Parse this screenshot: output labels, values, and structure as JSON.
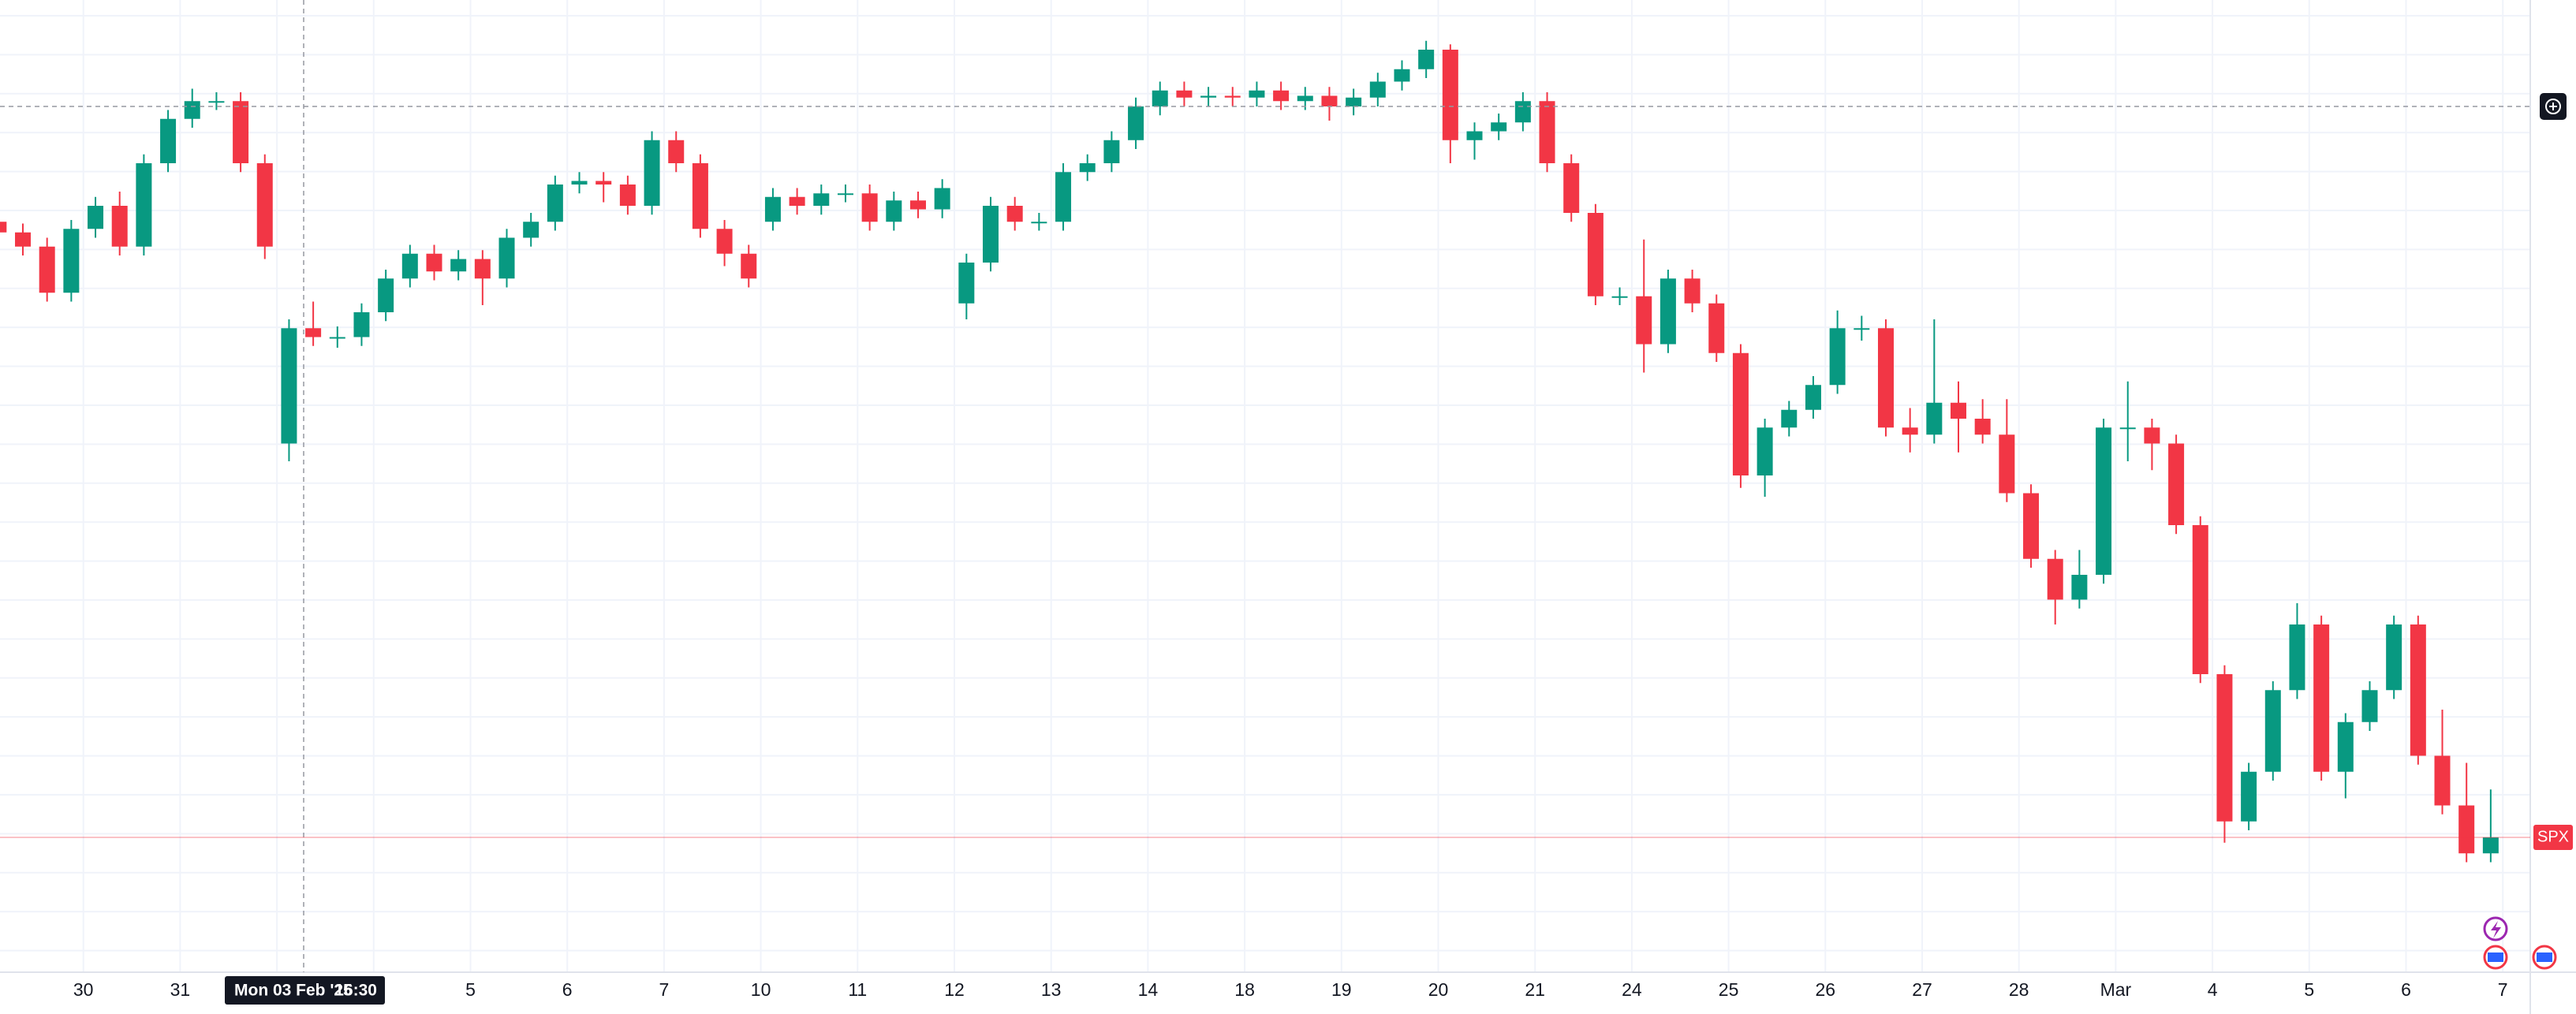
{
  "chart_data": {
    "type": "candlestick",
    "categories": [
      null,
      "30",
      "31",
      null,
      null,
      "5",
      "6",
      "7",
      "10",
      "11",
      "12",
      "13",
      "14",
      "18",
      "19",
      "20",
      "21",
      "24",
      "25",
      "26",
      "27",
      "28",
      "Mar",
      "4",
      "5",
      "6",
      "7"
    ],
    "ylim": [
      5622,
      6170
    ],
    "crosshair": {
      "date_label": "Mon 03 Feb '25",
      "time_label": "16:30",
      "price": 6110
    },
    "last_price": 5698,
    "series": [
      {
        "name": "SPX",
        "up_color": "#089981",
        "down_color": "#f23645",
        "open": [
          6045,
          6039,
          6031,
          6005,
          6041,
          6054,
          6031,
          6078,
          6103,
          6113,
          6113,
          6078,
          5920,
          5985,
          5980,
          5980,
          5994,
          6013,
          6027,
          6017,
          6024,
          6013,
          6036,
          6045,
          6066,
          6068,
          6066,
          6054,
          6091,
          6078,
          6041,
          6027,
          6045,
          6059,
          6054,
          6061,
          6061,
          6045,
          6057,
          6052,
          5999,
          6022,
          6054,
          6045,
          6045,
          6073,
          6078,
          6091,
          6110,
          6119,
          6115,
          6116,
          6115,
          6119,
          6113,
          6116,
          6110,
          6115,
          6124,
          6131,
          6142,
          6091,
          6096,
          6101,
          6113,
          6078,
          6050,
          6003,
          6003,
          5976,
          6013,
          5999,
          5971,
          5902,
          5929,
          5939,
          5953,
          5985,
          5985,
          5929,
          5925,
          5943,
          5934,
          5925,
          5892,
          5855,
          5832,
          5846,
          5929,
          5929,
          5920,
          5874,
          5790,
          5707,
          5735,
          5781,
          5818,
          5735,
          5763,
          5781,
          5818,
          5744,
          5716,
          5689
        ],
        "high": [
          6050,
          6044,
          6036,
          6046,
          6059,
          6062,
          6083,
          6108,
          6120,
          6118,
          6118,
          6083,
          5990,
          6000,
          5986,
          5999,
          6018,
          6032,
          6032,
          6029,
          6029,
          6041,
          6050,
          6071,
          6073,
          6073,
          6071,
          6096,
          6096,
          6083,
          6046,
          6032,
          6064,
          6064,
          6066,
          6066,
          6066,
          6062,
          6062,
          6069,
          6027,
          6059,
          6059,
          6050,
          6078,
          6083,
          6096,
          6115,
          6124,
          6124,
          6121,
          6121,
          6124,
          6124,
          6121,
          6121,
          6120,
          6129,
          6136,
          6147,
          6145,
          6101,
          6106,
          6118,
          6118,
          6083,
          6055,
          6008,
          6035,
          6018,
          6018,
          6004,
          5976,
          5934,
          5944,
          5958,
          5995,
          5992,
          5990,
          5940,
          5990,
          5955,
          5945,
          5945,
          5897,
          5860,
          5860,
          5934,
          5955,
          5934,
          5925,
          5879,
          5795,
          5740,
          5786,
          5830,
          5823,
          5768,
          5786,
          5823,
          5823,
          5770,
          5740,
          5725
        ],
        "low": [
          6034,
          6026,
          6000,
          6000,
          6036,
          6026,
          6026,
          6073,
          6098,
          6108,
          6073,
          6024,
          5910,
          5975,
          5974,
          5975,
          5989,
          6008,
          6012,
          6012,
          5998,
          6008,
          6031,
          6040,
          6061,
          6056,
          6049,
          6049,
          6073,
          6036,
          6020,
          6008,
          6040,
          6049,
          6049,
          6056,
          6040,
          6040,
          6047,
          6047,
          5990,
          6017,
          6040,
          6040,
          6040,
          6068,
          6073,
          6086,
          6105,
          6110,
          6110,
          6110,
          6110,
          6108,
          6108,
          6102,
          6105,
          6110,
          6119,
          6126,
          6078,
          6080,
          6091,
          6096,
          6073,
          6045,
          5998,
          5998,
          5960,
          5971,
          5994,
          5966,
          5895,
          5890,
          5924,
          5934,
          5948,
          5978,
          5924,
          5915,
          5920,
          5915,
          5920,
          5887,
          5850,
          5818,
          5827,
          5841,
          5910,
          5905,
          5869,
          5785,
          5695,
          5702,
          5730,
          5776,
          5730,
          5720,
          5758,
          5776,
          5739,
          5711,
          5684,
          5684
        ],
        "close": [
          6039,
          6031,
          6005,
          6041,
          6054,
          6031,
          6078,
          6103,
          6113,
          6113,
          6078,
          6031,
          5985,
          5980,
          5980,
          5994,
          6013,
          6027,
          6017,
          6024,
          6013,
          6036,
          6045,
          6066,
          6068,
          6066,
          6054,
          6091,
          6078,
          6041,
          6027,
          6013,
          6059,
          6054,
          6061,
          6061,
          6045,
          6057,
          6052,
          6064,
          6022,
          6054,
          6045,
          6045,
          6073,
          6078,
          6091,
          6110,
          6119,
          6115,
          6116,
          6115,
          6119,
          6113,
          6116,
          6110,
          6115,
          6124,
          6131,
          6142,
          6091,
          6096,
          6101,
          6113,
          6078,
          6050,
          6003,
          6003,
          5976,
          6013,
          5999,
          5971,
          5902,
          5929,
          5939,
          5953,
          5985,
          5985,
          5929,
          5925,
          5943,
          5934,
          5925,
          5892,
          5855,
          5832,
          5846,
          5929,
          5929,
          5920,
          5874,
          5790,
          5707,
          5735,
          5781,
          5818,
          5735,
          5763,
          5781,
          5818,
          5744,
          5716,
          5689,
          5698
        ]
      }
    ]
  }
}
